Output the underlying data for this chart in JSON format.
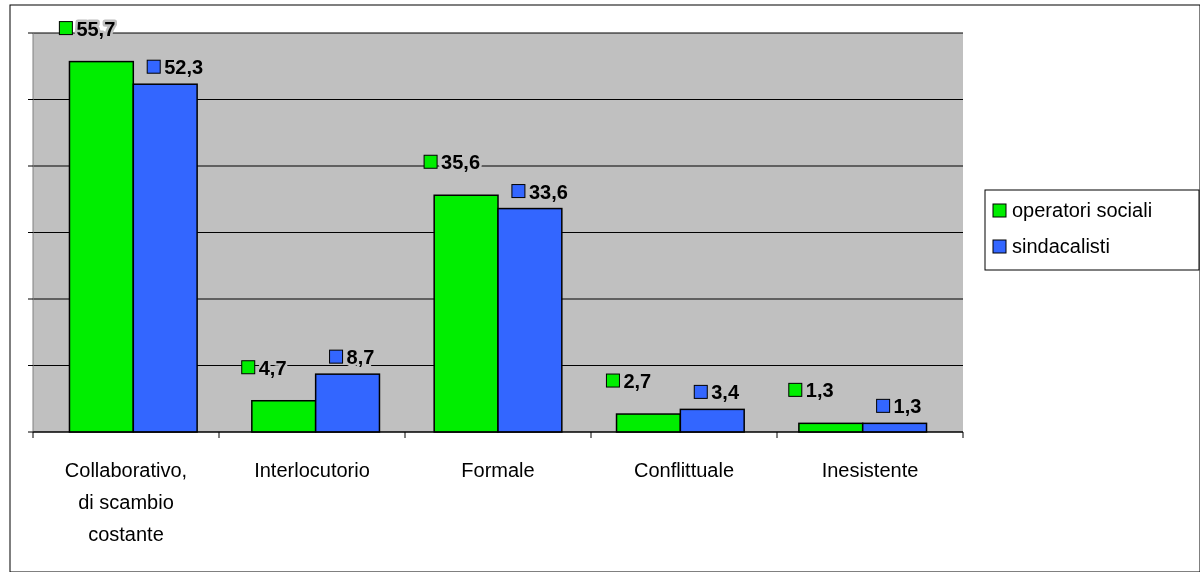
{
  "chart_data": {
    "type": "bar",
    "categories": [
      "Collaborativo, di scambio costante",
      "Interlocutorio",
      "Formale",
      "Conflittuale",
      "Inesistente"
    ],
    "series": [
      {
        "name": "operatori sociali",
        "color": "#00ee00",
        "values": [
          55.7,
          4.7,
          35.6,
          2.7,
          1.3
        ],
        "value_labels": [
          "55,7",
          "4,7",
          "35,6",
          "2,7",
          "1,3"
        ]
      },
      {
        "name": "sindacalisti",
        "color": "#3366ff",
        "values": [
          52.3,
          8.7,
          33.6,
          3.4,
          1.3
        ],
        "value_labels": [
          "52,3",
          "8,7",
          "33,6",
          "3,4",
          "1,3"
        ]
      }
    ],
    "ylim": [
      0,
      60
    ],
    "yticks": [
      {
        "value": 0,
        "label": null
      },
      {
        "value": 10,
        "label": null
      },
      {
        "value": 20,
        "label": null
      },
      {
        "value": 30,
        "label": null
      },
      {
        "value": 40,
        "label": null
      },
      {
        "value": 50,
        "label": null
      },
      {
        "value": 60,
        "label": null
      }
    ],
    "tick_labels": "x",
    "grid": "y",
    "legend": "right"
  }
}
